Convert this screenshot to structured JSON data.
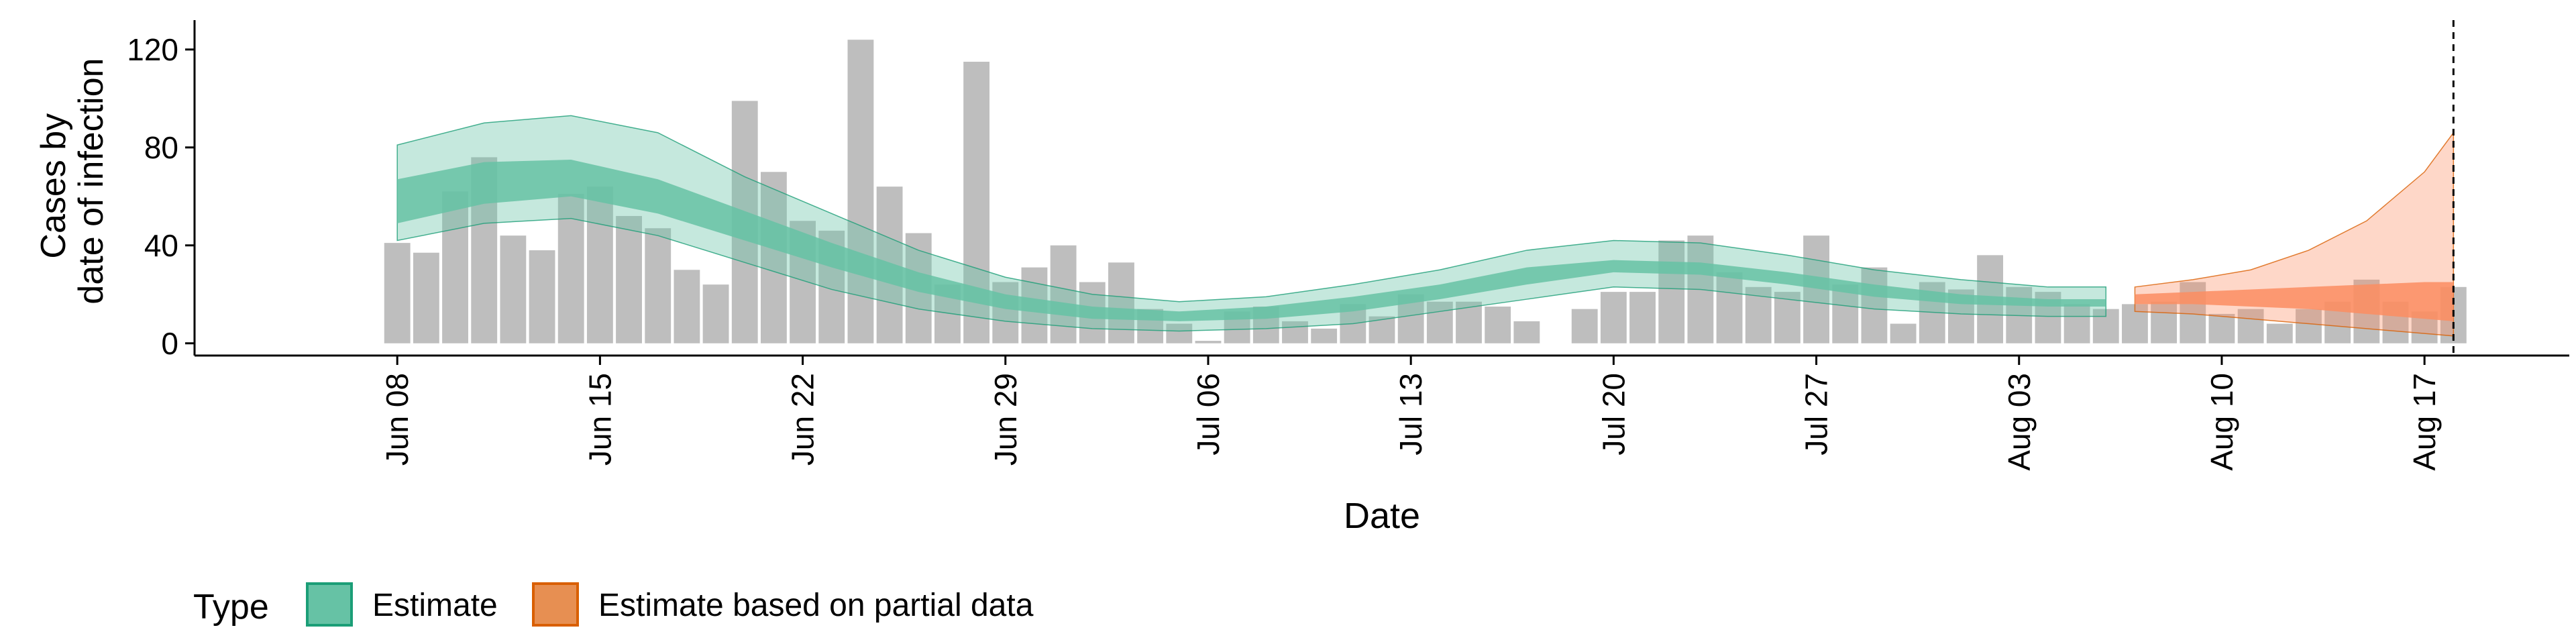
{
  "chart_data": {
    "type": "bar",
    "title": "",
    "xlabel": "Date",
    "ylabel_lines": [
      "Cases by",
      "date of infection"
    ],
    "ylim": [
      -5,
      132
    ],
    "y_ticks": [
      0,
      40,
      80,
      120
    ],
    "x_range": [
      "2020-06-01",
      "2020-08-22"
    ],
    "x_ticks": [
      {
        "date": "2020-06-08",
        "label": "Jun 08"
      },
      {
        "date": "2020-06-15",
        "label": "Jun 15"
      },
      {
        "date": "2020-06-22",
        "label": "Jun 22"
      },
      {
        "date": "2020-06-29",
        "label": "Jun 29"
      },
      {
        "date": "2020-07-06",
        "label": "Jul 06"
      },
      {
        "date": "2020-07-13",
        "label": "Jul 13"
      },
      {
        "date": "2020-07-20",
        "label": "Jul 20"
      },
      {
        "date": "2020-07-27",
        "label": "Jul 27"
      },
      {
        "date": "2020-08-03",
        "label": "Aug 03"
      },
      {
        "date": "2020-08-10",
        "label": "Aug 10"
      },
      {
        "date": "2020-08-17",
        "label": "Aug 17"
      }
    ],
    "grid": false,
    "bars": {
      "start_date": "2020-06-08",
      "color": "#bebebe",
      "values": [
        41,
        37,
        62,
        76,
        44,
        38,
        61,
        64,
        52,
        47,
        30,
        24,
        99,
        70,
        50,
        46,
        124,
        64,
        45,
        24,
        115,
        25,
        31,
        40,
        25,
        33,
        14,
        8,
        1,
        13,
        15,
        9,
        6,
        16,
        11,
        20,
        17,
        17,
        15,
        9,
        0,
        14,
        21,
        21,
        42,
        44,
        29,
        23,
        21,
        44,
        24,
        31,
        8,
        25,
        22,
        36,
        23,
        21,
        16,
        14,
        16,
        17,
        25,
        12,
        14,
        8,
        14,
        17,
        26,
        17,
        13,
        23
      ]
    },
    "estimate_band": {
      "name": "Estimate",
      "color": "#66c2a5",
      "dates": [
        "2020-06-08",
        "2020-06-11",
        "2020-06-14",
        "2020-06-17",
        "2020-06-20",
        "2020-06-23",
        "2020-06-26",
        "2020-06-29",
        "2020-07-02",
        "2020-07-05",
        "2020-07-08",
        "2020-07-11",
        "2020-07-14",
        "2020-07-17",
        "2020-07-20",
        "2020-07-23",
        "2020-07-26",
        "2020-07-29",
        "2020-08-01",
        "2020-08-04",
        "2020-08-06"
      ],
      "lower_90": [
        42,
        49,
        51,
        44,
        33,
        22,
        14,
        9,
        6,
        5,
        6,
        8,
        13,
        18,
        23,
        22,
        18,
        14,
        12,
        11,
        11
      ],
      "lower_50": [
        49,
        57,
        60,
        53,
        42,
        31,
        21,
        14,
        10,
        9,
        10,
        13,
        18,
        24,
        29,
        28,
        24,
        19,
        16,
        15,
        15
      ],
      "upper_50": [
        67,
        74,
        75,
        67,
        54,
        41,
        29,
        20,
        15,
        13,
        15,
        19,
        24,
        31,
        34,
        33,
        29,
        24,
        20,
        18,
        18
      ],
      "upper_90": [
        81,
        90,
        93,
        86,
        68,
        53,
        38,
        27,
        20,
        17,
        19,
        24,
        30,
        38,
        42,
        41,
        36,
        30,
        26,
        23,
        23
      ]
    },
    "partial_band": {
      "name": "Estimate based on partial data",
      "color": "#fc8d62",
      "dates": [
        "2020-08-07",
        "2020-08-09",
        "2020-08-11",
        "2020-08-13",
        "2020-08-15",
        "2020-08-17",
        "2020-08-18"
      ],
      "lower_90": [
        13,
        12,
        10,
        8,
        6,
        4,
        3
      ],
      "lower_50": [
        16,
        16,
        15,
        14,
        12,
        10,
        9
      ],
      "upper_50": [
        20,
        21,
        22,
        23,
        24,
        25,
        25
      ],
      "upper_90": [
        23,
        26,
        30,
        38,
        50,
        70,
        86
      ]
    },
    "vline_date": "2020-08-18",
    "legend": {
      "title": "Type",
      "position": "bottom",
      "items": [
        {
          "label": "Estimate",
          "color": "#66c2a5"
        },
        {
          "label": "Estimate based on partial data",
          "color": "#fc8d62"
        }
      ]
    }
  }
}
